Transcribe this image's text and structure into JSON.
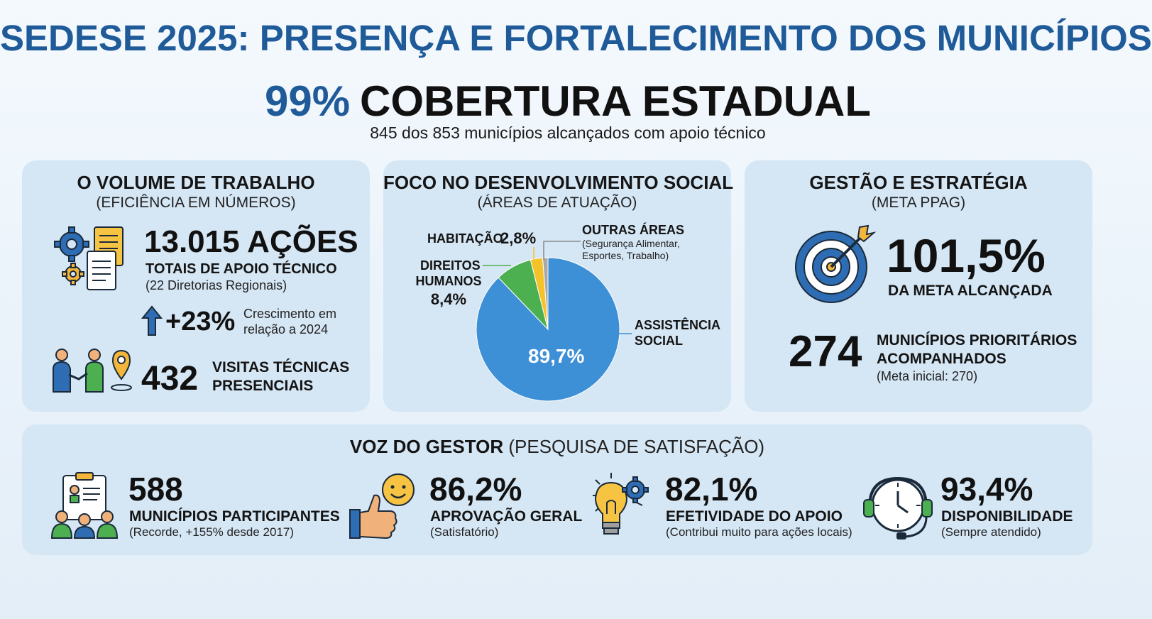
{
  "header": {
    "title": "SEDESE 2025: PRESENÇA E FORTALECIMENTO DOS MUNICÍPIOS",
    "coverage_value": "99%",
    "coverage_label": "COBERTURA ESTADUAL",
    "coverage_sub": "845 dos 853 municípios alcançados com apoio técnico"
  },
  "volume": {
    "title": "O VOLUME DE TRABALHO",
    "subtitle": "(EFICIÊNCIA EM NÚMEROS)",
    "acoes_value": "13.015 AÇÕES",
    "acoes_label": "TOTAIS DE APOIO TÉCNICO",
    "acoes_sub": "(22 Diretorias Regionais)",
    "growth_value": "+23%",
    "growth_label_1": "Crescimento em",
    "growth_label_2": "relação a 2024",
    "visitas_value": "432",
    "visitas_label_1": "VISITAS TÉCNICAS",
    "visitas_label_2": "PRESENCIAIS"
  },
  "foco": {
    "title": "FOCO NO DESENVOLVIMENTO SOCIAL",
    "subtitle": "(ÁREAS DE ATUAÇÃO)",
    "label_habitacao": "HABITAÇÃO",
    "value_habitacao": "2,8%",
    "label_outras": "OUTRAS ÁREAS",
    "label_outras_sub_1": "(Segurança Alimentar,",
    "label_outras_sub_2": "Esportes, Trabalho)",
    "label_direitos_1": "DIREITOS",
    "label_direitos_2": "HUMANOS",
    "value_direitos": "8,4%",
    "label_assist_1": "ASSISTÊNCIA",
    "label_assist_2": "SOCIAL",
    "value_assist": "89,7%"
  },
  "gestao": {
    "title": "GESTÃO E ESTRATÉGIA",
    "subtitle": "(META PPAG)",
    "meta_value": "101,5%",
    "meta_label": "DA META ALCANÇADA",
    "prior_value": "274",
    "prior_label_1": "MUNICÍPIOS PRIORITÁRIOS",
    "prior_label_2": "ACOMPANHADOS",
    "prior_sub": "(Meta inicial: 270)"
  },
  "voz": {
    "title_bold": "VOZ DO GESTOR",
    "title_rest": "(PESQUISA DE SATISFAÇÃO)",
    "items": [
      {
        "value": "588",
        "label": "MUNICÍPIOS PARTICIPANTES",
        "sub": "(Recorde, +155% desde 2017)"
      },
      {
        "value": "86,2%",
        "label": "APROVAÇÃO GERAL",
        "sub": "(Satisfatório)"
      },
      {
        "value": "82,1%",
        "label": "EFETIVIDADE DO APOIO",
        "sub": "(Contribui muito para ações locais)"
      },
      {
        "value": "93,4%",
        "label": "DISPONIBILIDADE",
        "sub": "(Sempre atendido)"
      }
    ]
  },
  "colors": {
    "accent": "#1f5a99",
    "card": "#d5e6f4",
    "pie_assist": "#3d8fd6",
    "pie_direitos": "#4caf50",
    "pie_habitacao": "#f5c22a",
    "pie_outras": "#a9a9a9"
  },
  "chart_data": {
    "type": "pie",
    "title": "FOCO NO DESENVOLVIMENTO SOCIAL",
    "categories": [
      "ASSISTÊNCIA SOCIAL",
      "DIREITOS HUMANOS",
      "HABITAÇÃO",
      "OUTRAS ÁREAS"
    ],
    "values": [
      89.7,
      8.4,
      2.8,
      1.2
    ],
    "colors": [
      "#3d8fd6",
      "#4caf50",
      "#f5c22a",
      "#a9a9a9"
    ],
    "legend": "none (direct labels)"
  }
}
